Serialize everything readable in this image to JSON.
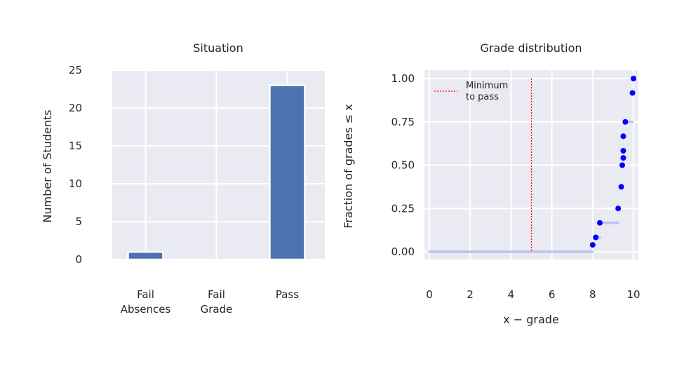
{
  "chart_data": [
    {
      "type": "bar",
      "title": "Situation",
      "xlabel": "",
      "ylabel": "Number of Students",
      "categories": [
        [
          "Fail",
          "Absences"
        ],
        [
          "Fail",
          "Grade"
        ],
        [
          "Pass"
        ]
      ],
      "values": [
        1,
        0,
        23
      ],
      "ylim": [
        0,
        25
      ],
      "yticks": [
        "0",
        "5",
        "10",
        "15",
        "20",
        "25"
      ],
      "grid": true,
      "colors": {
        "bar": "#4c72b0",
        "background": "#eaeaf2",
        "grid": "#ffffff"
      }
    },
    {
      "type": "scatter",
      "title": "Grade distribution",
      "xlabel": "x − grade",
      "ylabel": "Fraction of grades ≤ x",
      "xlim": [
        0,
        10
      ],
      "ylim": [
        0,
        1
      ],
      "xticks": [
        "0",
        "2",
        "4",
        "6",
        "8",
        "10"
      ],
      "yticks": [
        "0.00",
        "0.25",
        "0.50",
        "0.75",
        "1.00"
      ],
      "grid": true,
      "ecdf_points": [
        {
          "x": 8.0,
          "y": 0.04
        },
        {
          "x": 8.15,
          "y": 0.083
        },
        {
          "x": 8.35,
          "y": 0.167
        },
        {
          "x": 9.25,
          "y": 0.25
        },
        {
          "x": 9.4,
          "y": 0.375
        },
        {
          "x": 9.45,
          "y": 0.5
        },
        {
          "x": 9.5,
          "y": 0.542
        },
        {
          "x": 9.5,
          "y": 0.583
        },
        {
          "x": 9.5,
          "y": 0.667
        },
        {
          "x": 9.6,
          "y": 0.75
        },
        {
          "x": 9.95,
          "y": 0.917
        },
        {
          "x": 10.0,
          "y": 1.0
        }
      ],
      "ecdf_steps": [
        {
          "x0": 0.0,
          "x1": 8.0,
          "y": 0.0
        },
        {
          "x0": 8.15,
          "x1": 8.35,
          "y": 0.083
        },
        {
          "x0": 8.35,
          "x1": 9.25,
          "y": 0.167
        },
        {
          "x0": 9.6,
          "x1": 9.95,
          "y": 0.75
        }
      ],
      "threshold": {
        "x": 5,
        "label_line1": "Minimum",
        "label_line2": "to pass"
      },
      "colors": {
        "points": "#0000ff",
        "steps": "#c0c0f0",
        "threshold": "#ff0000",
        "background": "#eaeaf2",
        "grid": "#ffffff"
      }
    }
  ]
}
